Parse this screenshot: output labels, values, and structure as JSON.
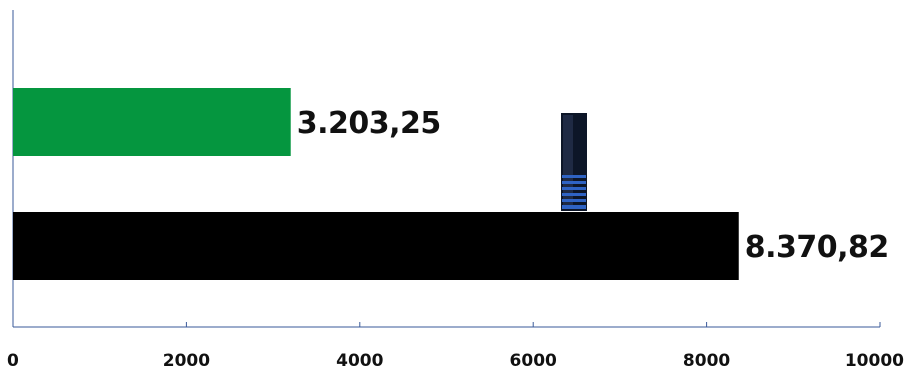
{
  "chart_data": {
    "type": "bar",
    "orientation": "horizontal",
    "categories": [
      "",
      ""
    ],
    "values": [
      3203.25,
      8370.82
    ],
    "value_labels": [
      "3.203,25",
      "8.370,82"
    ],
    "bar_colors": [
      "#05963f",
      "#000000"
    ],
    "xlim": [
      0,
      10000
    ],
    "xticks": [
      0,
      2000,
      4000,
      6000,
      8000,
      10000
    ],
    "xtick_labels": [
      "0",
      "2000",
      "4000",
      "6000",
      "8000",
      "10000"
    ],
    "title": "",
    "xlabel": "",
    "ylabel": "",
    "grid": false,
    "axis_color": "#3a5a9a",
    "decoration": "gear-shift-lever-icon"
  }
}
